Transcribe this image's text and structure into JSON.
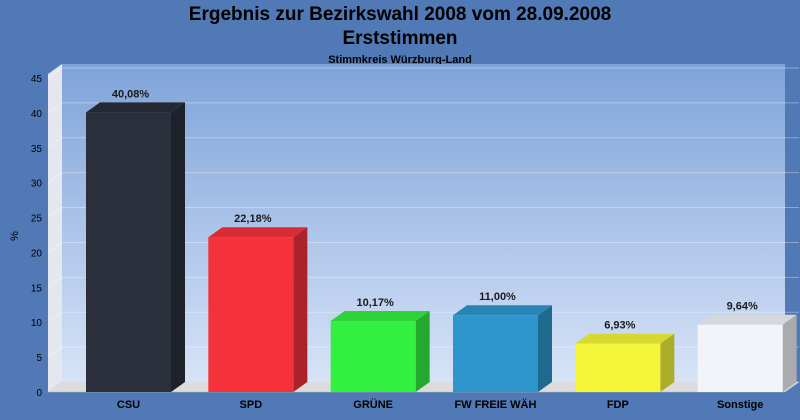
{
  "chart_data": {
    "type": "bar",
    "title": "Ergebnis zur Bezirkswahl 2008 vom 28.09.2008",
    "title_line2": "Erststimmen",
    "subtitle": "Stimmkreis Würzburg-Land",
    "ylabel": "%",
    "xlabel": "",
    "ylim": [
      0,
      45
    ],
    "yticks": [
      0,
      5,
      10,
      15,
      20,
      25,
      30,
      35,
      40,
      45
    ],
    "grid": true,
    "legend": "none",
    "categories": [
      "CSU",
      "SPD",
      "GRÜNE",
      "FW FREIE WÄH",
      "FDP",
      "Sonstige"
    ],
    "values": [
      40.08,
      22.18,
      10.17,
      11.0,
      6.93,
      9.64
    ],
    "value_labels": [
      "40,08%",
      "22,18%",
      "10,17%",
      "11,00%",
      "6,93%",
      "9,64%"
    ],
    "colors": [
      "#2a2f3b",
      "#f5313a",
      "#33f040",
      "#2e96cc",
      "#f5f53a",
      "#f2f4fa"
    ]
  }
}
